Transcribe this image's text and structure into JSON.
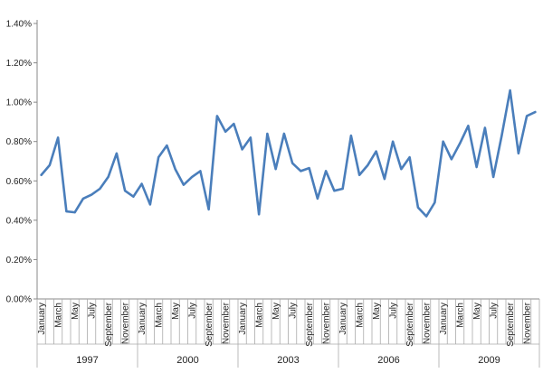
{
  "chart_data": {
    "type": "line",
    "title": "",
    "xlabel": "",
    "ylabel": "",
    "ylim": [
      0,
      0.014
    ],
    "y_ticks": [
      "0.00%",
      "0.20%",
      "0.40%",
      "0.60%",
      "0.80%",
      "1.00%",
      "1.20%",
      "1.40%"
    ],
    "y_tick_values": [
      0,
      0.002,
      0.004,
      0.006,
      0.008,
      0.01,
      0.012,
      0.014
    ],
    "grid": false,
    "legend": "none",
    "line_color": "#4a7ebb",
    "years": [
      {
        "label": "1997",
        "start_index": 0
      },
      {
        "label": "2000",
        "start_index": 12
      },
      {
        "label": "2003",
        "start_index": 24
      },
      {
        "label": "2006",
        "start_index": 36
      },
      {
        "label": "2009",
        "start_index": 48
      }
    ],
    "month_labels": [
      "January",
      "March",
      "May",
      "July",
      "September",
      "November"
    ],
    "month_label_positions": [
      0,
      2,
      4,
      6,
      8,
      10
    ],
    "series": [
      {
        "values": [
          0.0063,
          0.0068,
          0.0082,
          0.00445,
          0.0044,
          0.0051,
          0.0053,
          0.0056,
          0.0062,
          0.0074,
          0.0055,
          0.0052,
          0.00585,
          0.0048,
          0.0072,
          0.0078,
          0.0066,
          0.0058,
          0.0062,
          0.0065,
          0.00455,
          0.0093,
          0.0085,
          0.0089,
          0.0076,
          0.0082,
          0.0043,
          0.0084,
          0.0066,
          0.0084,
          0.0069,
          0.0065,
          0.00665,
          0.0051,
          0.0065,
          0.0055,
          0.0056,
          0.0083,
          0.0063,
          0.0068,
          0.0075,
          0.0061,
          0.008,
          0.0066,
          0.0072,
          0.00465,
          0.0042,
          0.0049,
          0.008,
          0.0071,
          0.0079,
          0.0088,
          0.0067,
          0.0087,
          0.0062,
          0.0083,
          0.0106,
          0.0074,
          0.0093,
          0.0095
        ]
      }
    ]
  }
}
